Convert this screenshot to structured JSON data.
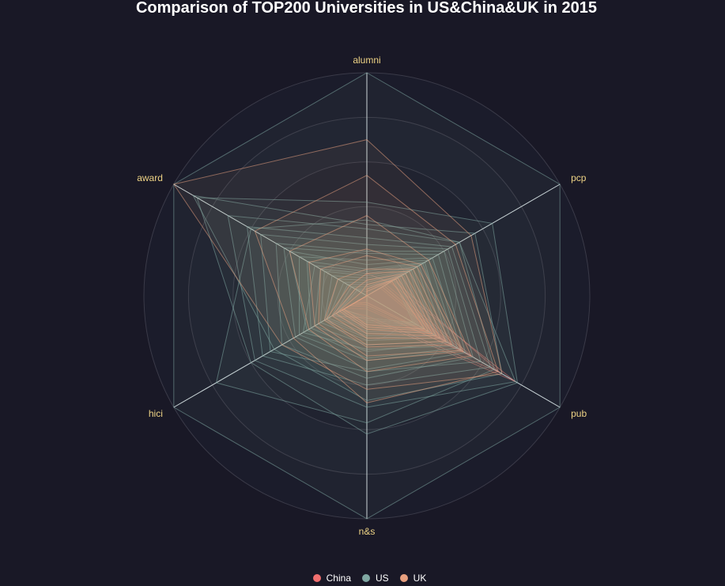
{
  "chart_data": {
    "type": "radar",
    "title": "Comparison of TOP200 Universities in US&China&UK in 2015",
    "indicators": [
      "alumni",
      "pcp",
      "pub",
      "n&s",
      "hici",
      "award"
    ],
    "max": 100,
    "split_number": 5,
    "legend_position": "bottom",
    "series": [
      {
        "name": "China",
        "color": "#f16f6f",
        "values": [
          [
            10,
            12,
            77,
            10,
            18,
            0
          ],
          [
            4,
            14,
            69,
            9,
            13,
            0
          ],
          [
            0,
            10,
            55,
            5,
            9,
            0
          ],
          [
            0,
            9,
            50,
            6,
            11,
            0
          ],
          [
            0,
            8,
            45,
            4,
            9,
            0
          ],
          [
            0,
            9,
            42,
            3,
            8,
            0
          ],
          [
            0,
            8,
            40,
            4,
            7,
            0
          ],
          [
            0,
            7,
            38,
            3,
            6,
            0
          ]
        ]
      },
      {
        "name": "US",
        "color": "#80a8a3",
        "values": [
          [
            100,
            100,
            100,
            100,
            100,
            100
          ],
          [
            42,
            65,
            78,
            62,
            60,
            88
          ],
          [
            34,
            48,
            66,
            57,
            78,
            60
          ],
          [
            32,
            56,
            70,
            47,
            48,
            90
          ],
          [
            30,
            48,
            77,
            50,
            58,
            72
          ],
          [
            26,
            44,
            64,
            40,
            54,
            62
          ],
          [
            23,
            42,
            59,
            34,
            50,
            55
          ],
          [
            20,
            40,
            55,
            37,
            44,
            47
          ],
          [
            19,
            37,
            51,
            33,
            37,
            43
          ],
          [
            16,
            34,
            49,
            29,
            35,
            35
          ],
          [
            14,
            32,
            47,
            28,
            31,
            40
          ],
          [
            12,
            30,
            42,
            25,
            29,
            31
          ],
          [
            11,
            29,
            45,
            24,
            33,
            27
          ],
          [
            10,
            27,
            41,
            22,
            27,
            24
          ],
          [
            9,
            26,
            38,
            20,
            24,
            22
          ],
          [
            8,
            24,
            36,
            19,
            22,
            18
          ],
          [
            7,
            23,
            35,
            18,
            21,
            15
          ],
          [
            6,
            22,
            33,
            17,
            20,
            12
          ],
          [
            5,
            20,
            32,
            16,
            18,
            10
          ],
          [
            4,
            19,
            30,
            15,
            17,
            8
          ],
          [
            3,
            18,
            29,
            14,
            16,
            6
          ],
          [
            2,
            17,
            27,
            13,
            15,
            5
          ],
          [
            0,
            16,
            26,
            12,
            14,
            0
          ],
          [
            0,
            15,
            25,
            11,
            13,
            0
          ],
          [
            0,
            14,
            24,
            10,
            12,
            0
          ]
        ]
      },
      {
        "name": "UK",
        "color": "#e8a07f",
        "values": [
          [
            70,
            54,
            70,
            42,
            44,
            100
          ],
          [
            54,
            46,
            68,
            48,
            38,
            58
          ],
          [
            36,
            32,
            54,
            34,
            30,
            40
          ],
          [
            21,
            28,
            50,
            29,
            27,
            30
          ],
          [
            18,
            26,
            49,
            27,
            25,
            24
          ],
          [
            12,
            24,
            44,
            23,
            22,
            15
          ],
          [
            10,
            22,
            41,
            22,
            21,
            9
          ],
          [
            7,
            20,
            38,
            19,
            18,
            6
          ],
          [
            5,
            18,
            36,
            17,
            16,
            3
          ],
          [
            3,
            16,
            34,
            15,
            14,
            0
          ],
          [
            2,
            15,
            32,
            14,
            13,
            0
          ],
          [
            0,
            13,
            30,
            13,
            12,
            0
          ]
        ]
      }
    ]
  }
}
